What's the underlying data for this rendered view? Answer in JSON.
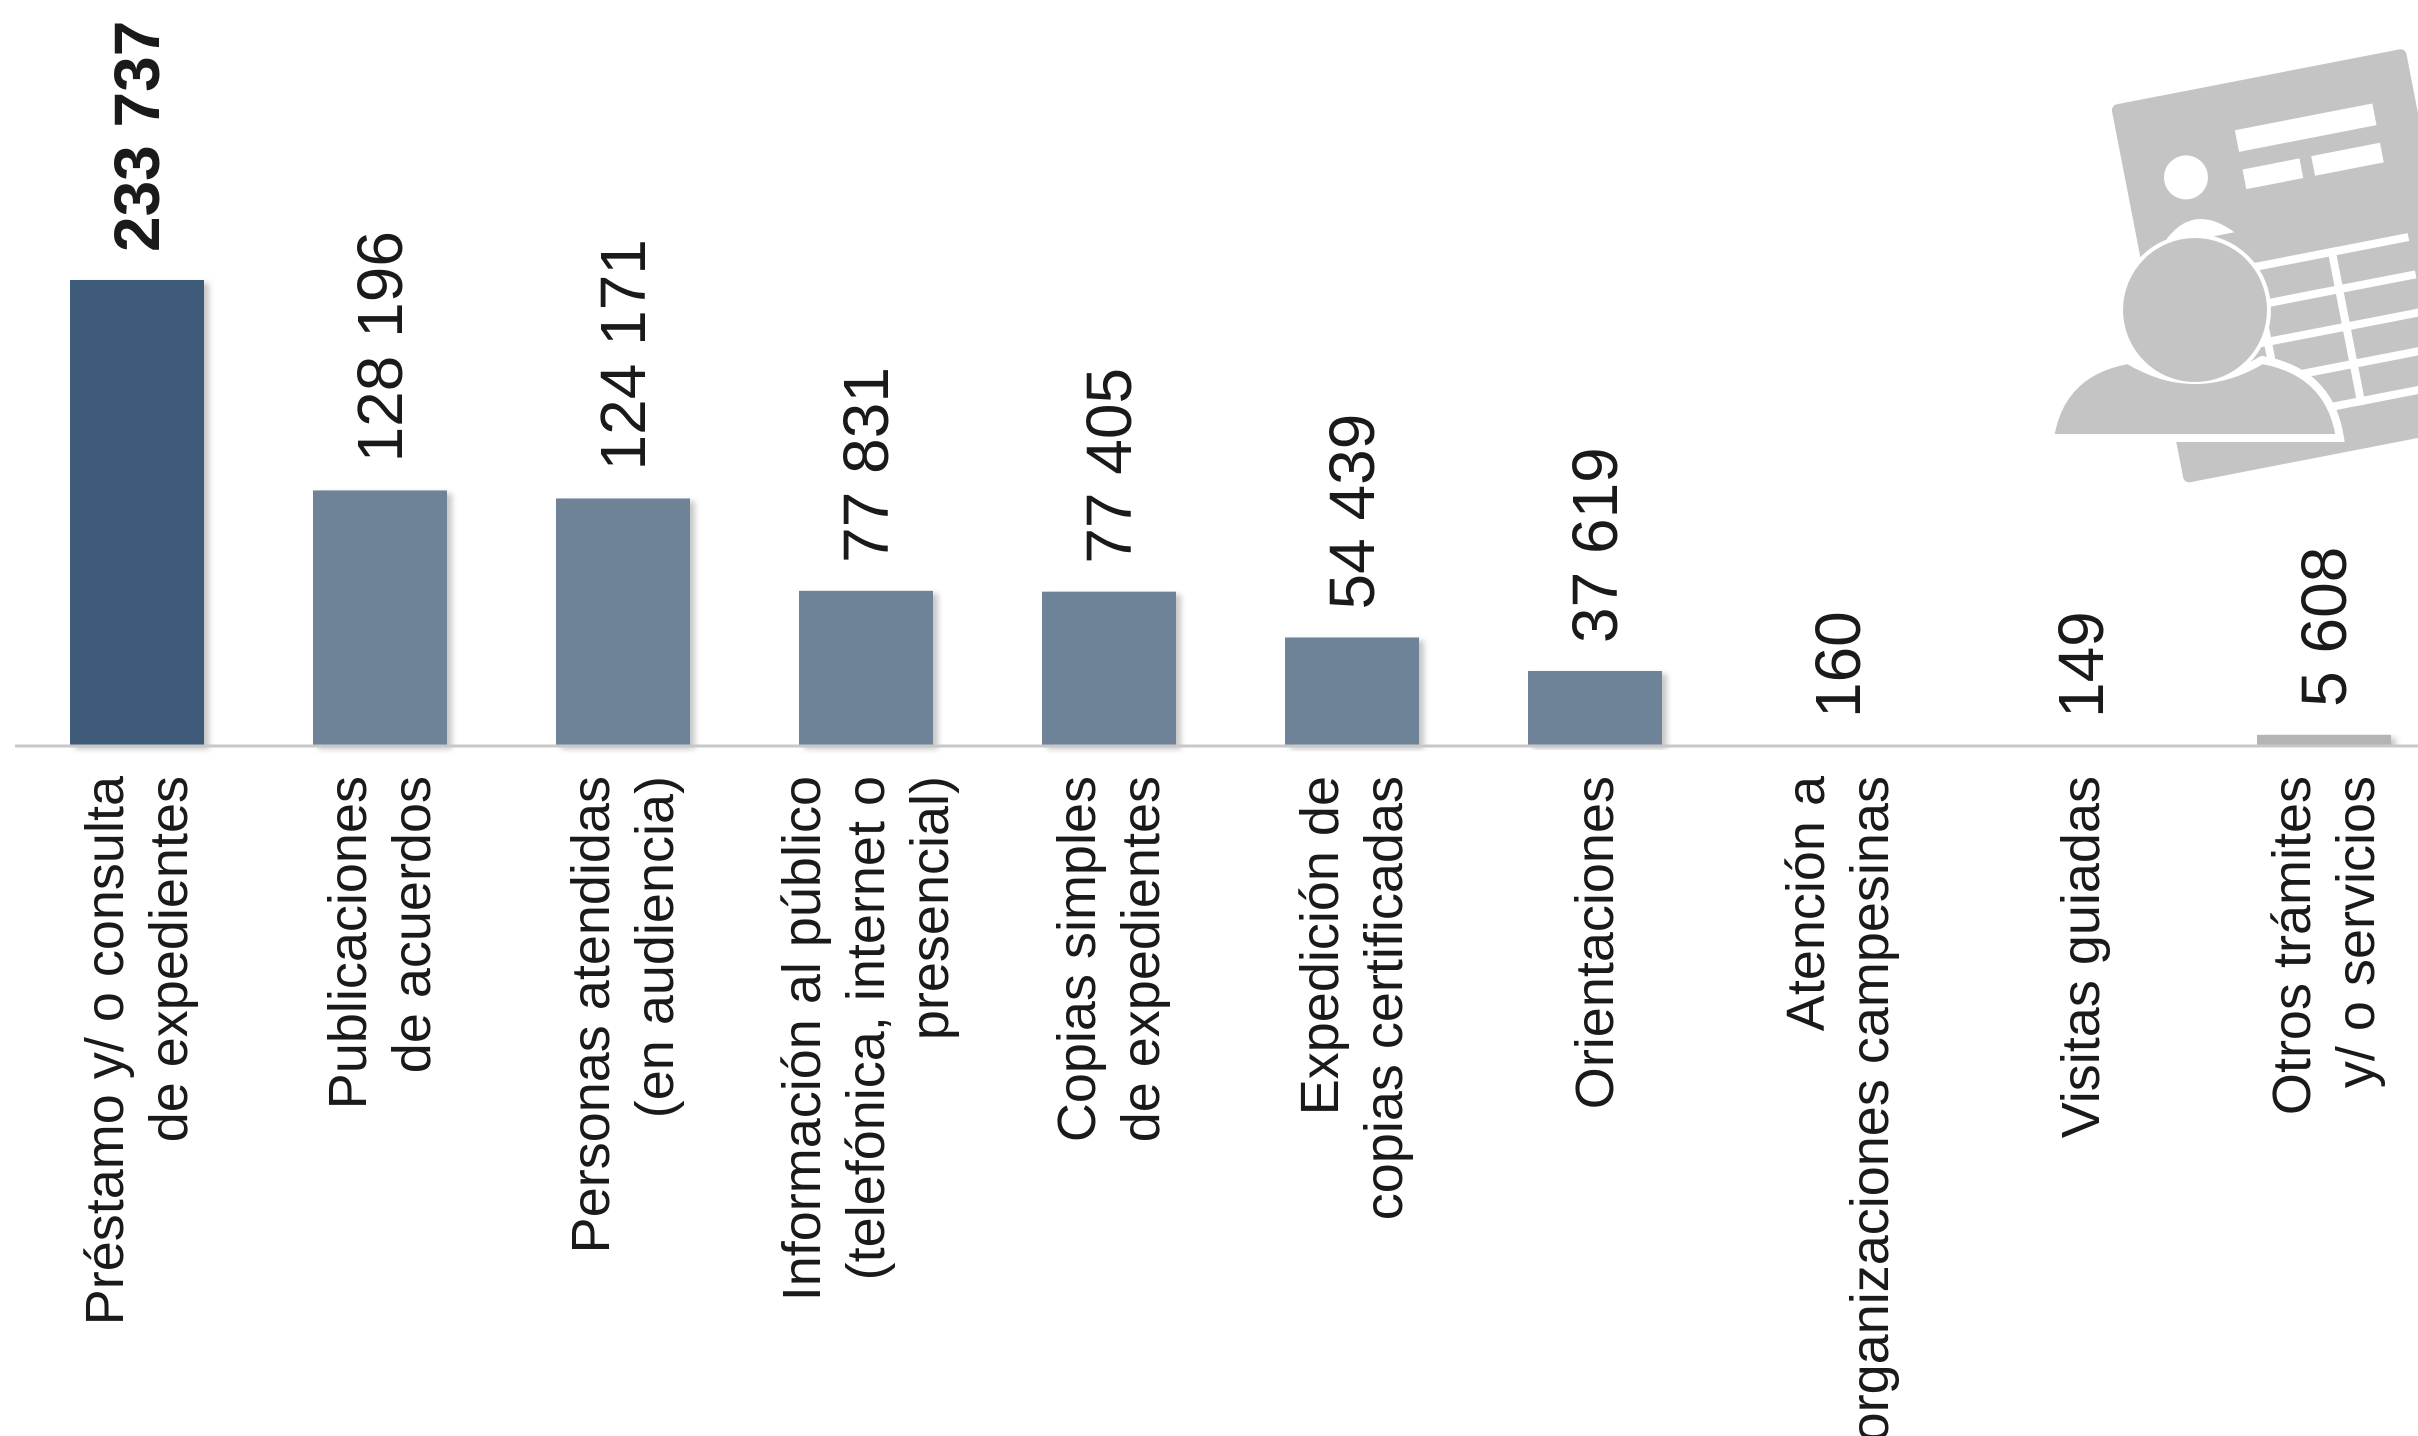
{
  "colors": {
    "highlight_bar": "#3d5a78",
    "bar": "#6e8298",
    "other_bar": "#b4b4b4",
    "axis": "#c8c8c8",
    "icon": "#c4c4c4",
    "text": "#1a1a1a"
  },
  "icon": "person-record-card-icon",
  "chart_data": {
    "type": "bar",
    "title": "",
    "xlabel": "",
    "ylabel": "",
    "ylim": [
      0,
      233737
    ],
    "grid": false,
    "legend": "none",
    "categories": [
      [
        "Préstamo y/ o consulta",
        "de expedientes"
      ],
      [
        "Publicaciones",
        "de acuerdos"
      ],
      [
        "Personas atendidas",
        "(en audiencia)"
      ],
      [
        "Información al público",
        "(telefónica, internet o",
        "presencial)"
      ],
      [
        "Copias simples",
        "de expedientes"
      ],
      [
        "Expedición de",
        "copias certificadas"
      ],
      [
        "Orientaciones"
      ],
      [
        "Atención a",
        "organizaciones campesinas"
      ],
      [
        "Visitas guiadas"
      ],
      [
        "Otros trámites",
        "y/ o servicios"
      ]
    ],
    "values": [
      233737,
      128196,
      124171,
      77831,
      77405,
      54439,
      37619,
      160,
      149,
      5608
    ],
    "value_labels": [
      "233 737",
      "128 196",
      "124 171",
      "77 831",
      "77 405",
      "54 439",
      "37 619",
      "160",
      "149",
      "5 608"
    ],
    "bar_colors": [
      "highlight_bar",
      "bar",
      "bar",
      "bar",
      "bar",
      "bar",
      "bar",
      "bar",
      "bar",
      "other_bar"
    ],
    "bold_labels": [
      0
    ]
  }
}
